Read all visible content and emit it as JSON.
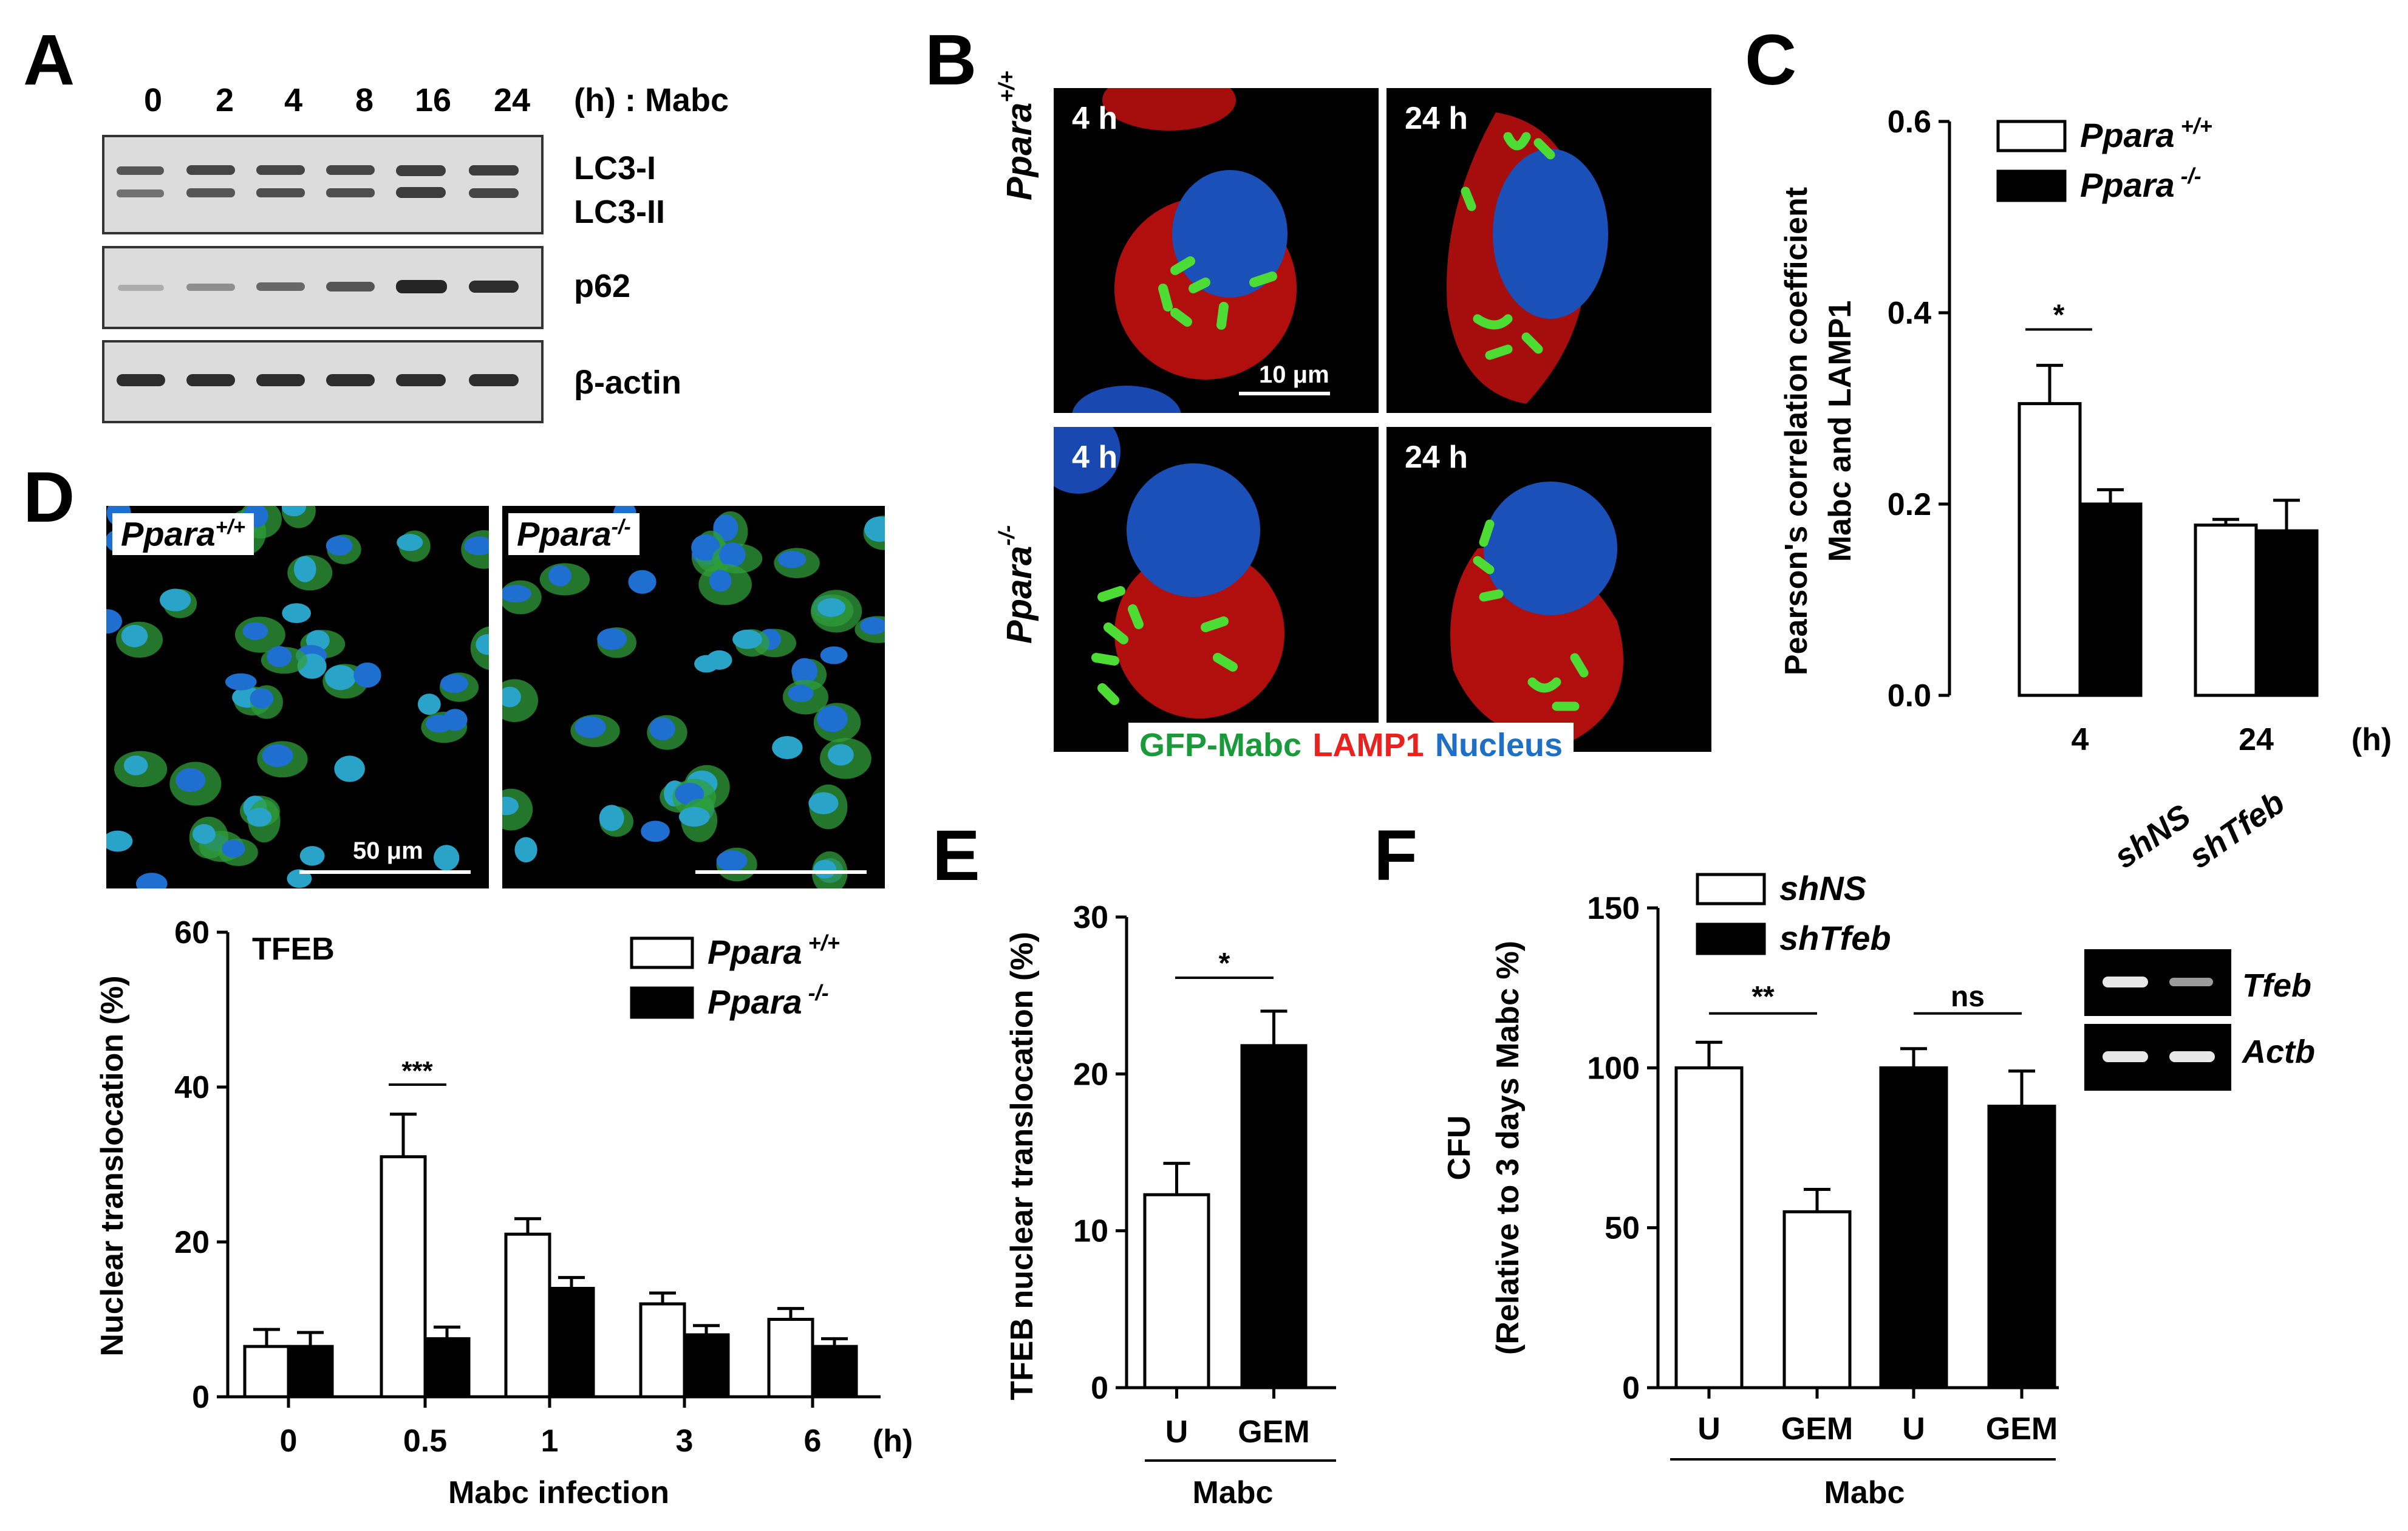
{
  "panels": {
    "A": {
      "letter": "A",
      "timepoints": [
        "0",
        "2",
        "4",
        "8",
        "16",
        "24"
      ],
      "time_unit": "(h) : Mabc",
      "bands": [
        {
          "labels": [
            "LC3-I",
            "LC3-II"
          ]
        },
        {
          "labels": [
            "p62"
          ]
        },
        {
          "labels": [
            "β-actin"
          ]
        }
      ]
    },
    "B": {
      "letter": "B",
      "rows": [
        "Ppara",
        "Ppara"
      ],
      "row_superscripts": [
        "+/+",
        "-/-"
      ],
      "timepoint_labels": [
        "4 h",
        "24 h",
        "4 h",
        "24 h"
      ],
      "scale_bar": "10 μm",
      "legend": [
        {
          "text": "GFP-Mabc",
          "color": "#1a9a3a"
        },
        {
          "text": "LAMP1",
          "color": "#e8231f"
        },
        {
          "text": "Nucleus",
          "color": "#1f6fc4"
        }
      ]
    },
    "C": {
      "letter": "C"
    },
    "D": {
      "letter": "D",
      "image_labels": [
        "Ppara",
        "Ppara"
      ],
      "image_superscripts": [
        "+/+",
        "-/-"
      ],
      "scale_bar": "50 μm"
    },
    "E": {
      "letter": "E"
    },
    "F": {
      "letter": "F",
      "gel_lanes": [
        "shNS",
        "shTfeb"
      ],
      "gel_genes": [
        "Tfeb",
        "Actb"
      ]
    }
  },
  "chart_data": [
    {
      "id": "C",
      "type": "bar",
      "categories": [
        "4",
        "24"
      ],
      "x_unit": "(h)",
      "series": [
        {
          "name": "Ppara +/+",
          "fill": "#ffffff",
          "values": [
            0.305,
            0.178
          ],
          "errors": [
            0.04,
            0.006
          ]
        },
        {
          "name": "Ppara -/-",
          "fill": "#000000",
          "values": [
            0.2,
            0.172
          ],
          "errors": [
            0.015,
            0.032
          ]
        }
      ],
      "ylabel": "Pearson's correlation coefficient  Mabc and LAMP1",
      "ylim": [
        0,
        0.6
      ],
      "yticks": [
        "0.0",
        "0.2",
        "0.4",
        "0.6"
      ],
      "significance": [
        {
          "label": "*",
          "category": "4"
        }
      ]
    },
    {
      "id": "D",
      "type": "bar",
      "title": "TFEB",
      "categories": [
        "0",
        "0.5",
        "1",
        "3",
        "6"
      ],
      "x_unit": "(h)",
      "xlabel": "Mabc infection",
      "ylabel": "Nuclear translocation (%)",
      "ylim": [
        0,
        60
      ],
      "yticks": [
        "0",
        "20",
        "40",
        "60"
      ],
      "series": [
        {
          "name": "Ppara +/+",
          "fill": "#ffffff",
          "values": [
            6.5,
            31,
            21,
            12,
            10
          ],
          "errors": [
            2.2,
            5.5,
            2.0,
            1.4,
            1.4
          ]
        },
        {
          "name": "Ppara -/-",
          "fill": "#000000",
          "values": [
            6.5,
            7.5,
            14,
            8,
            6.5
          ],
          "errors": [
            1.8,
            1.5,
            1.4,
            1.2,
            1.0
          ]
        }
      ],
      "significance": [
        {
          "label": "***",
          "category": "0.5"
        }
      ]
    },
    {
      "id": "E",
      "type": "bar",
      "categories": [
        "U",
        "GEM"
      ],
      "group_label": "Mabc",
      "ylabel": "TFEB nuclear translocation (%)",
      "ylim": [
        0,
        30
      ],
      "yticks": [
        "0",
        "10",
        "20",
        "30"
      ],
      "values": [
        12.3,
        21.8
      ],
      "errors": [
        2.0,
        2.2
      ],
      "fills": [
        "#ffffff",
        "#000000"
      ],
      "significance": [
        {
          "label": "*"
        }
      ]
    },
    {
      "id": "F",
      "type": "bar",
      "categories": [
        "U",
        "GEM",
        "U",
        "GEM"
      ],
      "group_label": "Mabc",
      "ylabel": "CFU",
      "ylabel2": "(Relative to 3 days Mabc %)",
      "ylim": [
        0,
        150
      ],
      "yticks": [
        "0",
        "50",
        "100",
        "150"
      ],
      "legend": [
        {
          "name": "shNS",
          "fill": "#ffffff"
        },
        {
          "name": "shTfeb",
          "fill": "#000000"
        }
      ],
      "values": [
        100,
        55,
        100,
        88
      ],
      "errors": [
        8,
        7,
        6,
        11
      ],
      "fills": [
        "#ffffff",
        "#ffffff",
        "#000000",
        "#000000"
      ],
      "significance": [
        {
          "label": "**",
          "pair": [
            0,
            1
          ]
        },
        {
          "label": "ns",
          "pair": [
            2,
            3
          ]
        }
      ]
    }
  ]
}
